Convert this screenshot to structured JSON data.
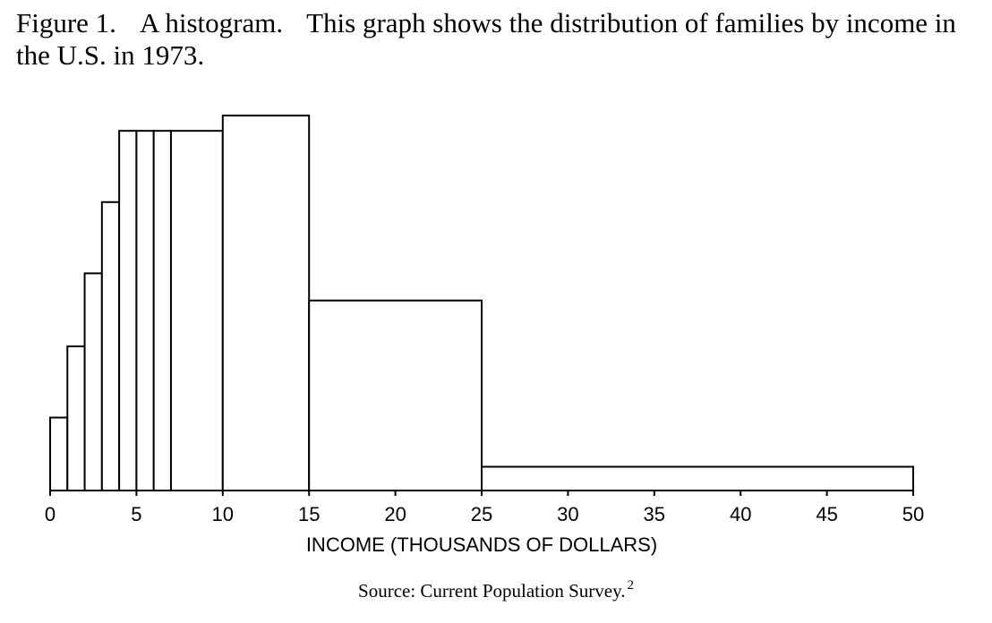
{
  "figure": {
    "label": "Figure 1.",
    "caption_title": "A histogram.",
    "caption_text": "This graph shows the distribution of families by income in the U.S. in 1973."
  },
  "source": {
    "text": "Source: Current Population Survey.",
    "footnote": "2"
  },
  "chart_data": {
    "type": "bar",
    "xlabel": "INCOME (THOUSANDS OF DOLLARS)",
    "ylabel": "",
    "xlim": [
      0,
      50
    ],
    "ylim": [
      0,
      2.2
    ],
    "xticks": [
      0,
      5,
      10,
      15,
      20,
      25,
      30,
      35,
      40,
      45,
      50
    ],
    "grid": false,
    "bins": [
      {
        "start": 0,
        "end": 1,
        "height": 0.43
      },
      {
        "start": 1,
        "end": 2,
        "height": 0.85
      },
      {
        "start": 2,
        "end": 3,
        "height": 1.28
      },
      {
        "start": 3,
        "end": 4,
        "height": 1.7
      },
      {
        "start": 4,
        "end": 5,
        "height": 2.12
      },
      {
        "start": 5,
        "end": 6,
        "height": 2.12
      },
      {
        "start": 6,
        "end": 7,
        "height": 2.12
      },
      {
        "start": 7,
        "end": 10,
        "height": 2.12
      },
      {
        "start": 10,
        "end": 15,
        "height": 2.21
      },
      {
        "start": 15,
        "end": 25,
        "height": 1.12
      },
      {
        "start": 25,
        "end": 50,
        "height": 0.14
      }
    ]
  }
}
